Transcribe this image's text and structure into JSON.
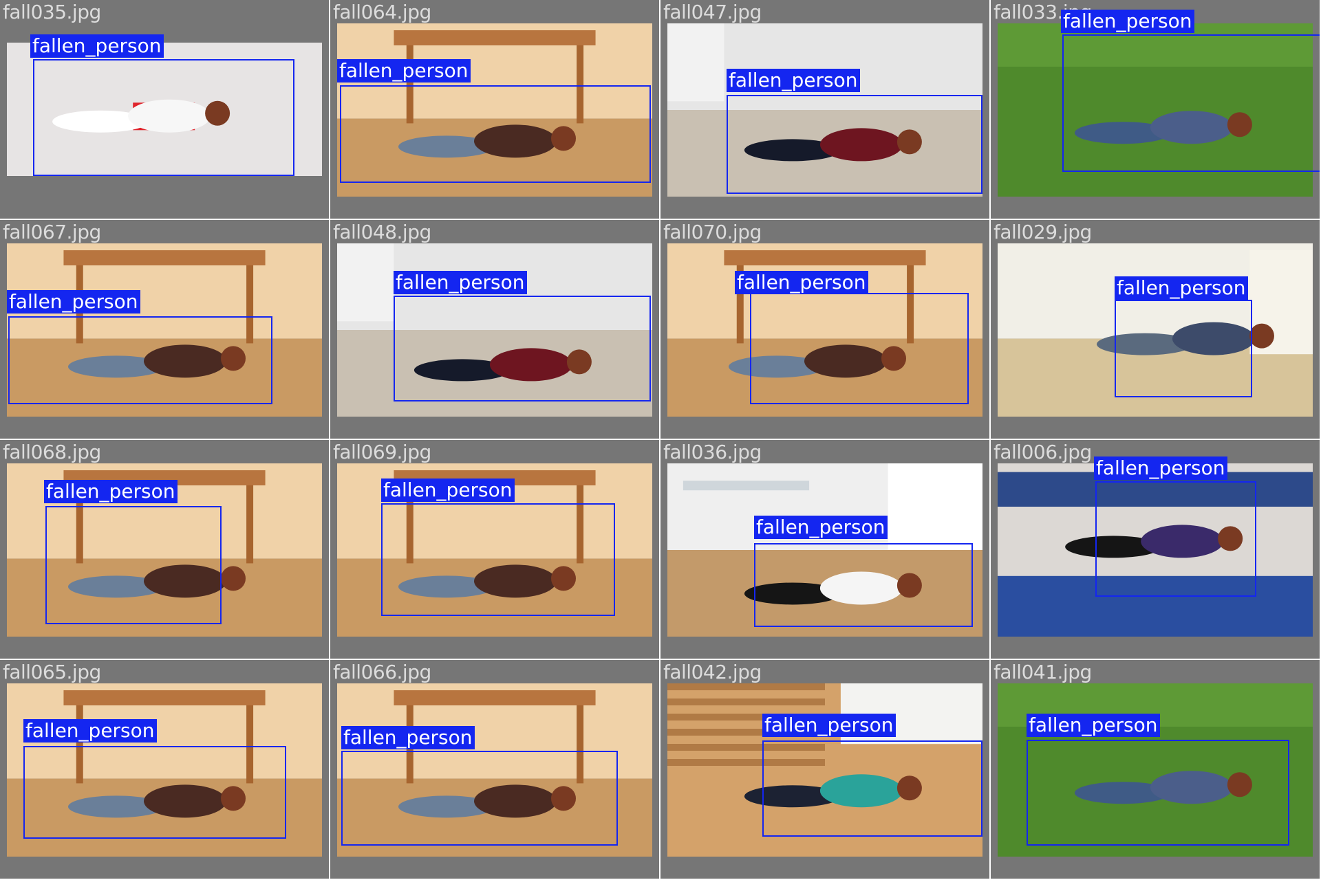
{
  "tiles": [
    {
      "file": "fall035.jpg",
      "label": "fallen_person",
      "scene": "indoor-white"
    },
    {
      "file": "fall064.jpg",
      "label": "fallen_person",
      "scene": "wood-table"
    },
    {
      "file": "fall047.jpg",
      "label": "fallen_person",
      "scene": "grey-room"
    },
    {
      "file": "fall033.jpg",
      "label": "fallen_person",
      "scene": "grass"
    },
    {
      "file": "fall067.jpg",
      "label": "fallen_person",
      "scene": "wood-table"
    },
    {
      "file": "fall048.jpg",
      "label": "fallen_person",
      "scene": "grey-room"
    },
    {
      "file": "fall070.jpg",
      "label": "fallen_person",
      "scene": "wood-table"
    },
    {
      "file": "fall029.jpg",
      "label": "fallen_person",
      "scene": "bright-floor"
    },
    {
      "file": "fall068.jpg",
      "label": "fallen_person",
      "scene": "wood-table"
    },
    {
      "file": "fall069.jpg",
      "label": "fallen_person",
      "scene": "wood-table"
    },
    {
      "file": "fall036.jpg",
      "label": "fallen_person",
      "scene": "office"
    },
    {
      "file": "fall006.jpg",
      "label": "fallen_person",
      "scene": "gym-mat"
    },
    {
      "file": "fall065.jpg",
      "label": "fallen_person",
      "scene": "wood-table"
    },
    {
      "file": "fall066.jpg",
      "label": "fallen_person",
      "scene": "wood-table"
    },
    {
      "file": "fall042.jpg",
      "label": "fallen_person",
      "scene": "stairs"
    },
    {
      "file": "fall041.jpg",
      "label": "fallen_person",
      "scene": "grass"
    }
  ],
  "colors": {
    "tile_background": "#767676",
    "box": "#1426f0",
    "label_text": "#ffffff",
    "filename_text": "#dcdcdc"
  }
}
